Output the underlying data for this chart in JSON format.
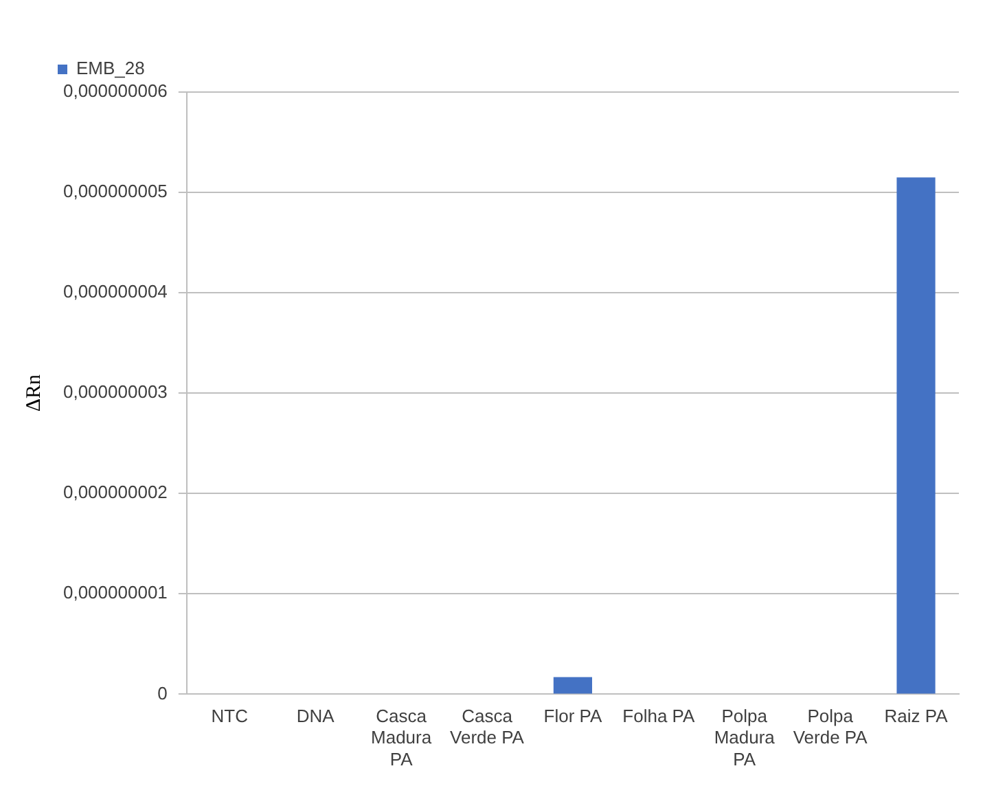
{
  "chart_data": {
    "type": "bar",
    "ylabel": "ΔRn",
    "categories": [
      "NTC",
      "DNA",
      "Casca Madura PA",
      "Casca Verde PA",
      "Flor PA",
      "Folha PA",
      "Polpa Madura PA",
      "Polpa Verde PA",
      "Raiz PA"
    ],
    "series": [
      {
        "name": "EMB_28",
        "color": "#4472c4",
        "values": [
          0,
          0,
          0,
          0,
          1.7e-10,
          0,
          0,
          0,
          5.15e-09
        ]
      }
    ],
    "ylim": [
      0,
      6e-09
    ],
    "yticks": [
      0,
      {
        "value": 1e-09,
        "label": "0,000000001"
      },
      {
        "value": 2e-09,
        "label": "0,000000002"
      },
      {
        "value": 3e-09,
        "label": "0,000000003"
      },
      {
        "value": 4e-09,
        "label": "0,000000004"
      },
      {
        "value": 5e-09,
        "label": "0,000000005"
      },
      {
        "value": 6e-09,
        "label": "0,000000006"
      }
    ],
    "grid": "y",
    "legend": "top left"
  }
}
